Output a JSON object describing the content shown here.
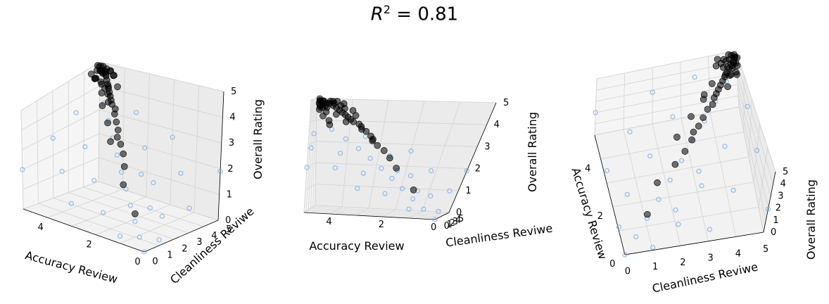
{
  "title": {
    "prefix": "R",
    "sup": "2",
    "rest": " = 0.81"
  },
  "chart_data": [
    {
      "type": "scatter",
      "projection": "3d",
      "view": "panel-left",
      "xlabel": "Accuracy Review",
      "ylabel": "Cleanliness Reviwe",
      "zlabel": "Overall Rating",
      "xticks": [
        "0",
        "2",
        "4"
      ],
      "yticks": [
        "0",
        "1",
        "2",
        "3",
        "4",
        "5"
      ],
      "zticks": [
        "0",
        "1",
        "2",
        "3",
        "4",
        "5"
      ],
      "xlim": [
        0,
        5
      ],
      "ylim": [
        0,
        5
      ],
      "zlim": [
        0,
        5
      ],
      "grid": true
    },
    {
      "type": "scatter",
      "projection": "3d",
      "view": "panel-middle",
      "xlabel": "Accuracy Review",
      "ylabel": "Cleanliness Reviwe",
      "zlabel": "Overall Rating",
      "xticks": [
        "0",
        "2",
        "4"
      ],
      "yticks": [
        "0",
        "1",
        "2",
        "3",
        "4",
        "5"
      ],
      "zticks": [
        "0",
        "1",
        "2",
        "3",
        "4",
        "5"
      ],
      "xlim": [
        0,
        5
      ],
      "ylim": [
        0,
        5
      ],
      "zlim": [
        0,
        5
      ],
      "grid": true
    },
    {
      "type": "scatter",
      "projection": "3d",
      "view": "panel-right",
      "xlabel": "Accuracy Review",
      "ylabel": "Cleanliness Reviwe",
      "zlabel": "Overall Rating",
      "xticks": [
        "0",
        "2",
        "4"
      ],
      "yticks": [
        "0",
        "1",
        "2",
        "3",
        "4",
        "5"
      ],
      "zticks": [
        "0",
        "1",
        "2",
        "3",
        "4",
        "5"
      ],
      "xlim": [
        0,
        5
      ],
      "ylim": [
        0,
        5
      ],
      "zlim": [
        0,
        5
      ],
      "grid": true
    }
  ],
  "series": {
    "observed": {
      "marker": "filled-circle",
      "color": "#000000",
      "points": [
        [
          4.9,
          4.9,
          4.9
        ],
        [
          4.8,
          4.9,
          4.9
        ],
        [
          4.9,
          4.8,
          4.9
        ],
        [
          4.7,
          4.8,
          4.8
        ],
        [
          4.8,
          4.7,
          4.8
        ],
        [
          4.6,
          4.7,
          4.8
        ],
        [
          4.9,
          4.9,
          4.7
        ],
        [
          4.5,
          4.6,
          4.7
        ],
        [
          4.7,
          4.9,
          4.6
        ],
        [
          4.4,
          4.5,
          4.6
        ],
        [
          4.9,
          4.6,
          4.5
        ],
        [
          4.3,
          4.4,
          4.5
        ],
        [
          4.6,
          4.8,
          4.9
        ],
        [
          4.2,
          4.3,
          4.4
        ],
        [
          4.8,
          4.5,
          4.9
        ],
        [
          4.1,
          4.2,
          4.3
        ],
        [
          4.9,
          4.7,
          5.0
        ],
        [
          4.0,
          4.1,
          4.2
        ],
        [
          4.5,
          4.9,
          4.8
        ],
        [
          3.9,
          4.0,
          4.1
        ],
        [
          4.7,
          4.6,
          4.4
        ],
        [
          3.8,
          3.9,
          4.0
        ],
        [
          4.4,
          4.7,
          4.9
        ],
        [
          3.6,
          3.8,
          3.9
        ],
        [
          4.8,
          4.8,
          4.2
        ],
        [
          3.5,
          3.6,
          3.8
        ],
        [
          4.3,
          4.8,
          4.7
        ],
        [
          3.3,
          3.4,
          3.6
        ],
        [
          4.6,
          4.5,
          4.0
        ],
        [
          3.1,
          3.2,
          3.4
        ],
        [
          4.9,
          5.0,
          4.6
        ],
        [
          3.0,
          3.0,
          3.2
        ],
        [
          4.2,
          4.6,
          4.8
        ],
        [
          2.8,
          2.9,
          3.0
        ],
        [
          4.5,
          4.4,
          4.9
        ],
        [
          2.5,
          2.6,
          2.8
        ],
        [
          4.8,
          4.4,
          4.6
        ],
        [
          2.2,
          2.2,
          2.5
        ],
        [
          4.4,
          4.6,
          4.3
        ],
        [
          1.0,
          1.0,
          1.2
        ],
        [
          1.8,
          1.5,
          2.1
        ],
        [
          3.4,
          3.0,
          3.7
        ],
        [
          4.1,
          3.9,
          4.6
        ],
        [
          3.7,
          3.5,
          4.3
        ],
        [
          4.6,
          4.9,
          3.8
        ],
        [
          4.9,
          4.3,
          4.8
        ],
        [
          3.9,
          4.4,
          4.5
        ],
        [
          4.0,
          3.6,
          4.0
        ],
        [
          2.9,
          2.4,
          3.3
        ],
        [
          4.7,
          4.2,
          4.7
        ]
      ]
    },
    "predicted": {
      "marker": "open-circle",
      "color": "#7fb3e6",
      "points": [
        [
          0.0,
          0.0,
          0.0
        ],
        [
          0.5,
          0.5,
          0.4
        ],
        [
          1.0,
          1.0,
          0.8
        ],
        [
          1.5,
          1.5,
          1.2
        ],
        [
          2.0,
          2.0,
          1.6
        ],
        [
          2.5,
          2.5,
          2.0
        ],
        [
          3.0,
          3.0,
          2.4
        ],
        [
          3.5,
          3.5,
          2.8
        ],
        [
          4.0,
          4.0,
          3.2
        ],
        [
          4.5,
          4.5,
          3.6
        ],
        [
          0.0,
          1.0,
          0.3
        ],
        [
          1.0,
          0.0,
          0.4
        ],
        [
          0.5,
          2.0,
          0.9
        ],
        [
          2.0,
          0.5,
          1.0
        ],
        [
          1.5,
          3.0,
          1.7
        ],
        [
          3.0,
          1.5,
          1.8
        ],
        [
          2.5,
          4.0,
          2.5
        ],
        [
          4.0,
          2.5,
          2.6
        ],
        [
          3.5,
          5.0,
          3.3
        ],
        [
          5.0,
          3.5,
          3.4
        ],
        [
          0.0,
          3.0,
          1.1
        ],
        [
          3.0,
          0.0,
          1.2
        ],
        [
          1.0,
          4.0,
          1.9
        ],
        [
          4.0,
          1.0,
          2.0
        ],
        [
          2.0,
          5.0,
          2.7
        ],
        [
          5.0,
          2.0,
          2.8
        ],
        [
          0.0,
          5.0,
          1.9
        ],
        [
          5.0,
          0.0,
          2.0
        ],
        [
          1.0,
          2.0,
          1.1
        ],
        [
          2.0,
          3.0,
          1.9
        ]
      ]
    }
  }
}
